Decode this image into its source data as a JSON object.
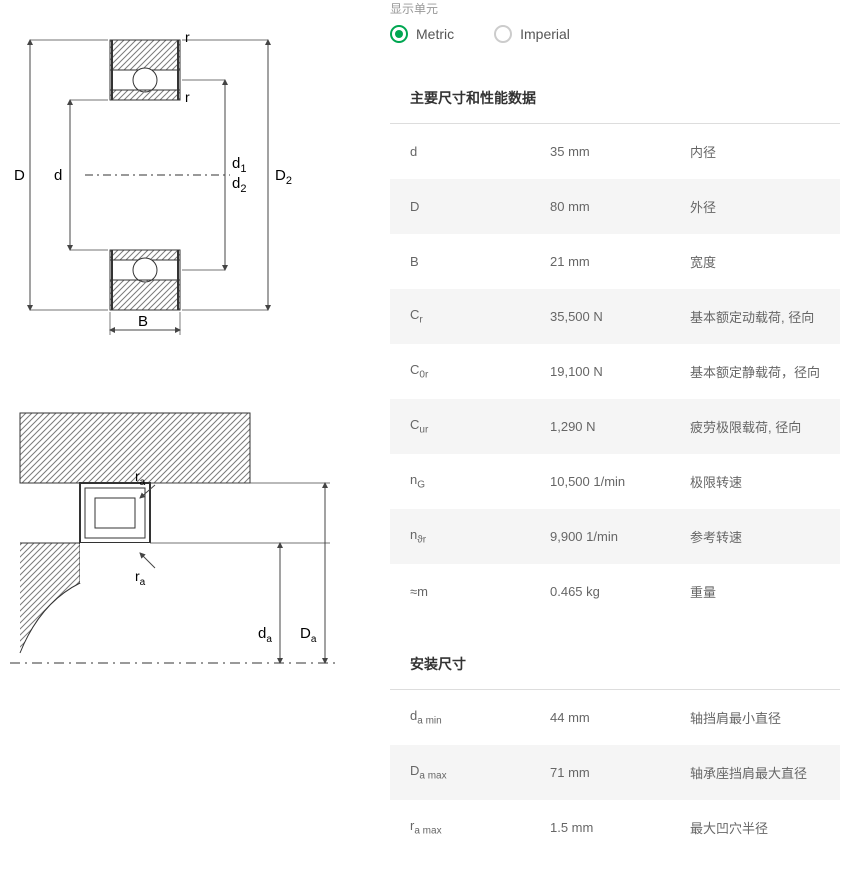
{
  "unit_label": "显示单元",
  "radios": {
    "metric": "Metric",
    "imperial": "Imperial",
    "selected": "metric"
  },
  "section1_title": "主要尺寸和性能数据",
  "section2_title": "安装尺寸",
  "rows1": [
    {
      "sym": "d",
      "sub": "",
      "val": "35 mm",
      "desc": "内径"
    },
    {
      "sym": "D",
      "sub": "",
      "val": "80 mm",
      "desc": "外径"
    },
    {
      "sym": "B",
      "sub": "",
      "val": "21 mm",
      "desc": "宽度"
    },
    {
      "sym": "C",
      "sub": "r",
      "val": "35,500 N",
      "desc": "基本额定动载荷, 径向"
    },
    {
      "sym": "C",
      "sub": "0r",
      "val": "19,100 N",
      "desc": "基本额定静载荷，径向"
    },
    {
      "sym": "C",
      "sub": "ur",
      "val": "1,290 N",
      "desc": "疲劳极限载荷, 径向"
    },
    {
      "sym": "n",
      "sub": "G",
      "val": "10,500 1/min",
      "desc": "极限转速"
    },
    {
      "sym": "n",
      "sub": "ϑr",
      "val": "9,900 1/min",
      "desc": "参考转速"
    },
    {
      "sym": "≈m",
      "sub": "",
      "val": "0.465 kg",
      "desc": "重量"
    }
  ],
  "rows2": [
    {
      "sym": "d",
      "sub": "a min",
      "val": "44 mm",
      "desc": "轴挡肩最小直径"
    },
    {
      "sym": "D",
      "sub": "a max",
      "val": "71 mm",
      "desc": "轴承座挡肩最大直径"
    },
    {
      "sym": "r",
      "sub": "a max",
      "val": "1.5 mm",
      "desc": "最大凹穴半径"
    }
  ],
  "diagram1": {
    "labels": {
      "D": "D",
      "d": "d",
      "d1": "d",
      "d1s": "1",
      "d2": "d",
      "d2s": "2",
      "D2": "D",
      "D2s": "2",
      "B": "B",
      "r": "r"
    },
    "colors": {
      "stroke": "#333333",
      "hatch": "#7a7a7a",
      "arrow": "#444444"
    }
  },
  "diagram2": {
    "labels": {
      "ra": "r",
      "ras": "a",
      "da": "d",
      "das": "a",
      "Da": "D",
      "Das": "a"
    },
    "colors": {
      "stroke": "#333333",
      "hatch": "#7a7a7a"
    }
  }
}
